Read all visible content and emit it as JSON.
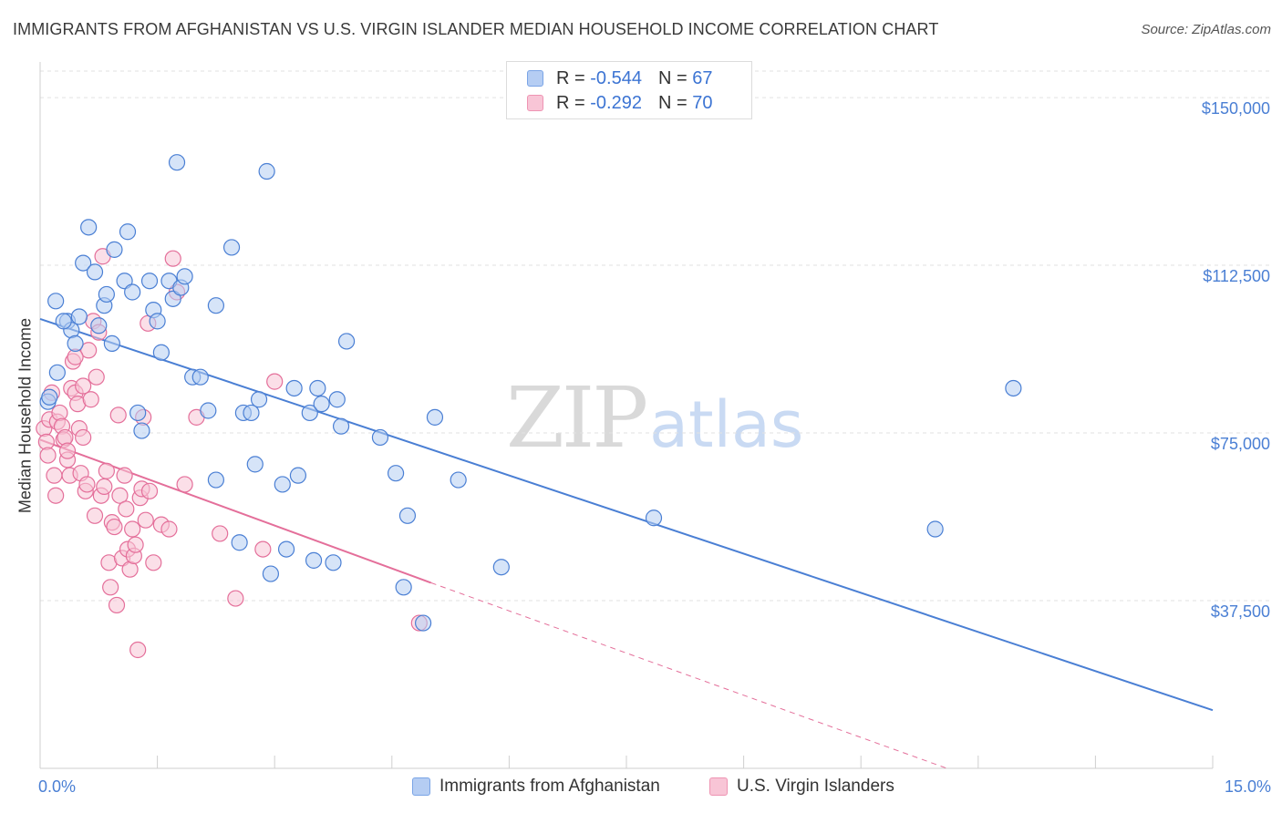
{
  "title": "IMMIGRANTS FROM AFGHANISTAN VS U.S. VIRGIN ISLANDER MEDIAN HOUSEHOLD INCOME CORRELATION CHART",
  "source": "Source: ZipAtlas.com",
  "watermark": {
    "zip": "ZIP",
    "atlas": "atlas"
  },
  "stats": [
    {
      "r_label": "R =",
      "r": "-0.544",
      "n_label": "N =",
      "n": "67",
      "color": "#4a7fd4"
    },
    {
      "r_label": "R =",
      "r": "-0.292",
      "n_label": "N =",
      "n": "70",
      "color": "#e46f9a"
    }
  ],
  "chart_data": {
    "type": "scatter",
    "title": "IMMIGRANTS FROM AFGHANISTAN VS U.S. VIRGIN ISLANDER MEDIAN HOUSEHOLD INCOME CORRELATION CHART",
    "xlabel": "",
    "ylabel": "Median Household Income",
    "xlim": [
      0,
      15
    ],
    "ylim": [
      0,
      160000
    ],
    "x_tick_labels": [
      "0.0%",
      "15.0%"
    ],
    "y_ticks": [
      37500,
      75000,
      112500,
      150000
    ],
    "y_tick_labels": [
      "$37,500",
      "$75,000",
      "$112,500",
      "$150,000"
    ],
    "grid": true,
    "legend_position": "bottom",
    "series": [
      {
        "name": "Immigrants from Afghanistan",
        "color": "#4a7fd4",
        "fill": "#b5cdf3",
        "trend": {
          "x": [
            0,
            15
          ],
          "y": [
            100500,
            13000
          ],
          "style": "solid"
        },
        "points": [
          [
            0.1,
            82000
          ],
          [
            0.12,
            83000
          ],
          [
            0.2,
            104500
          ],
          [
            0.22,
            88500
          ],
          [
            0.35,
            100000
          ],
          [
            0.4,
            98000
          ],
          [
            0.45,
            95000
          ],
          [
            0.5,
            101000
          ],
          [
            0.55,
            113000
          ],
          [
            0.62,
            121000
          ],
          [
            0.7,
            111000
          ],
          [
            0.75,
            99000
          ],
          [
            0.82,
            103500
          ],
          [
            0.85,
            106000
          ],
          [
            0.92,
            95000
          ],
          [
            0.95,
            116000
          ],
          [
            1.08,
            109000
          ],
          [
            1.12,
            120000
          ],
          [
            1.18,
            106500
          ],
          [
            1.25,
            79500
          ],
          [
            1.3,
            75500
          ],
          [
            1.4,
            109000
          ],
          [
            1.45,
            102500
          ],
          [
            1.5,
            100000
          ],
          [
            1.55,
            93000
          ],
          [
            1.65,
            109000
          ],
          [
            1.7,
            105000
          ],
          [
            1.75,
            135500
          ],
          [
            1.8,
            107500
          ],
          [
            1.85,
            110000
          ],
          [
            1.95,
            87500
          ],
          [
            2.05,
            87500
          ],
          [
            2.15,
            80000
          ],
          [
            2.25,
            64500
          ],
          [
            2.25,
            103500
          ],
          [
            2.45,
            116500
          ],
          [
            2.55,
            50500
          ],
          [
            2.6,
            79500
          ],
          [
            2.7,
            79500
          ],
          [
            2.75,
            68000
          ],
          [
            2.8,
            82500
          ],
          [
            2.9,
            133500
          ],
          [
            2.95,
            43500
          ],
          [
            3.1,
            63500
          ],
          [
            3.15,
            49000
          ],
          [
            3.25,
            85000
          ],
          [
            3.3,
            65500
          ],
          [
            3.45,
            79500
          ],
          [
            3.5,
            46500
          ],
          [
            3.55,
            85000
          ],
          [
            3.6,
            81500
          ],
          [
            3.75,
            46000
          ],
          [
            3.8,
            82500
          ],
          [
            3.85,
            76500
          ],
          [
            3.92,
            95500
          ],
          [
            4.35,
            74000
          ],
          [
            4.55,
            66000
          ],
          [
            4.65,
            40500
          ],
          [
            4.7,
            56500
          ],
          [
            4.9,
            32500
          ],
          [
            5.05,
            78500
          ],
          [
            5.35,
            64500
          ],
          [
            5.9,
            45000
          ],
          [
            7.85,
            56000
          ],
          [
            11.45,
            53500
          ],
          [
            12.45,
            85000
          ],
          [
            0.3,
            100000
          ]
        ]
      },
      {
        "name": "U.S. Virgin Islanders",
        "color": "#e46f9a",
        "fill": "#f8c5d6",
        "trend": {
          "x": [
            0,
            5
          ],
          "y": [
            73500,
            41500
          ],
          "style": "solid"
        },
        "trend_extension": {
          "x": [
            5,
            11.6
          ],
          "y": [
            41500,
            0
          ],
          "style": "dashed"
        },
        "points": [
          [
            0.05,
            76000
          ],
          [
            0.08,
            73000
          ],
          [
            0.1,
            70000
          ],
          [
            0.12,
            78000
          ],
          [
            0.15,
            84000
          ],
          [
            0.18,
            65500
          ],
          [
            0.2,
            61000
          ],
          [
            0.22,
            77500
          ],
          [
            0.25,
            79500
          ],
          [
            0.28,
            76500
          ],
          [
            0.3,
            73500
          ],
          [
            0.32,
            74000
          ],
          [
            0.35,
            69000
          ],
          [
            0.38,
            65500
          ],
          [
            0.4,
            85000
          ],
          [
            0.42,
            91000
          ],
          [
            0.45,
            84000
          ],
          [
            0.48,
            81500
          ],
          [
            0.5,
            76000
          ],
          [
            0.52,
            66000
          ],
          [
            0.55,
            74000
          ],
          [
            0.58,
            62000
          ],
          [
            0.6,
            63500
          ],
          [
            0.62,
            93500
          ],
          [
            0.65,
            82500
          ],
          [
            0.68,
            100000
          ],
          [
            0.7,
            56500
          ],
          [
            0.72,
            87500
          ],
          [
            0.75,
            97500
          ],
          [
            0.78,
            61000
          ],
          [
            0.8,
            114500
          ],
          [
            0.82,
            63000
          ],
          [
            0.85,
            66500
          ],
          [
            0.88,
            46000
          ],
          [
            0.9,
            40500
          ],
          [
            0.92,
            55000
          ],
          [
            0.95,
            54000
          ],
          [
            0.98,
            36500
          ],
          [
            1.0,
            79000
          ],
          [
            1.02,
            61000
          ],
          [
            1.05,
            47000
          ],
          [
            1.08,
            65500
          ],
          [
            1.1,
            58000
          ],
          [
            1.12,
            49000
          ],
          [
            1.15,
            44500
          ],
          [
            1.18,
            53500
          ],
          [
            1.2,
            47500
          ],
          [
            1.22,
            50000
          ],
          [
            1.25,
            26500
          ],
          [
            1.28,
            60500
          ],
          [
            1.3,
            62500
          ],
          [
            1.32,
            78500
          ],
          [
            1.35,
            55500
          ],
          [
            1.38,
            99500
          ],
          [
            1.4,
            62000
          ],
          [
            1.45,
            46000
          ],
          [
            1.55,
            54500
          ],
          [
            1.65,
            53500
          ],
          [
            1.7,
            114000
          ],
          [
            1.75,
            106500
          ],
          [
            1.85,
            63500
          ],
          [
            2.0,
            78500
          ],
          [
            2.3,
            52500
          ],
          [
            2.5,
            38000
          ],
          [
            2.85,
            49000
          ],
          [
            3.0,
            86500
          ],
          [
            4.85,
            32500
          ],
          [
            0.35,
            71000
          ],
          [
            0.55,
            85500
          ],
          [
            0.45,
            92000
          ]
        ]
      }
    ]
  }
}
